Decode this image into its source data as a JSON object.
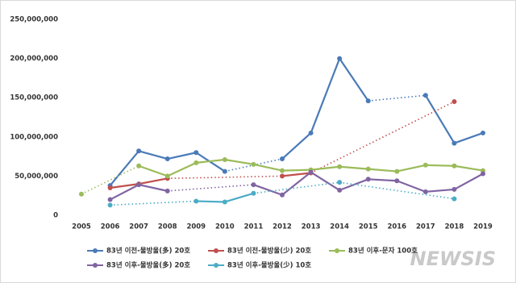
{
  "chart_data": {
    "type": "line",
    "categories": [
      "2005",
      "2006",
      "2007",
      "2008",
      "2009",
      "2010",
      "2011",
      "2012",
      "2013",
      "2014",
      "2015",
      "2016",
      "2017",
      "2018",
      "2019"
    ],
    "series": [
      {
        "name": "83년 이전-물방울(多) 20호",
        "color": "#4a7ab8",
        "values": [
          null,
          38000000,
          82000000,
          72000000,
          80000000,
          56000000,
          null,
          72000000,
          105000000,
          200000000,
          146000000,
          null,
          153000000,
          92000000,
          105000000
        ]
      },
      {
        "name": "83년 이전-물방울(少) 20호",
        "color": "#c0504d",
        "values": [
          null,
          35000000,
          40000000,
          47000000,
          null,
          null,
          null,
          50000000,
          54000000,
          null,
          null,
          null,
          null,
          145000000,
          null
        ]
      },
      {
        "name": "83년 이후-문자 100호",
        "color": "#9bbb59",
        "values": [
          27000000,
          null,
          63000000,
          50000000,
          67000000,
          71000000,
          65000000,
          57000000,
          58000000,
          62000000,
          59000000,
          56000000,
          64000000,
          63000000,
          57000000
        ]
      },
      {
        "name": "83년 이후-물방울(多) 20호",
        "color": "#8064a2",
        "values": [
          null,
          20000000,
          39000000,
          31000000,
          null,
          null,
          39000000,
          26000000,
          55000000,
          32000000,
          46000000,
          44000000,
          30000000,
          33000000,
          53000000
        ]
      },
      {
        "name": "83년 이후-물방울(少) 10호",
        "color": "#4bacc6",
        "values": [
          null,
          13000000,
          null,
          null,
          18000000,
          17000000,
          28000000,
          null,
          null,
          42000000,
          null,
          null,
          null,
          21000000,
          null
        ]
      }
    ],
    "ylim": [
      0,
      250000000
    ],
    "yticks": [
      0,
      {
        "value": 50000000,
        "label": "50,000,000"
      },
      {
        "value": 100000000,
        "label": "100,000,000"
      },
      {
        "value": 150000000,
        "label": "150,000,000"
      },
      {
        "value": 200000000,
        "label": "200,000,000"
      },
      {
        "value": 250000000,
        "label": "250,000,000"
      }
    ],
    "watermark": "NEWSIS"
  }
}
